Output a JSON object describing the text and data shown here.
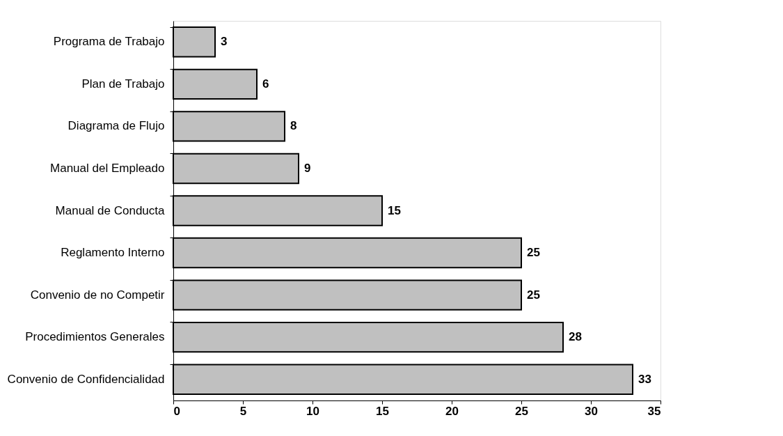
{
  "chart_data": {
    "type": "bar",
    "orientation": "horizontal",
    "categories": [
      "Programa de Trabajo",
      "Plan de Trabajo",
      "Diagrama de Flujo",
      "Manual del Empleado",
      "Manual de Conducta",
      "Reglamento Interno",
      "Convenio de no Competir",
      "Procedimientos Generales",
      "Convenio de Confidencialidad"
    ],
    "values": [
      3,
      6,
      8,
      9,
      15,
      25,
      25,
      28,
      33
    ],
    "color": "#c0c0c0",
    "xlim": [
      0,
      35
    ],
    "xticks": [
      0,
      5,
      10,
      15,
      20,
      25,
      30,
      35
    ],
    "data_labels": true
  }
}
